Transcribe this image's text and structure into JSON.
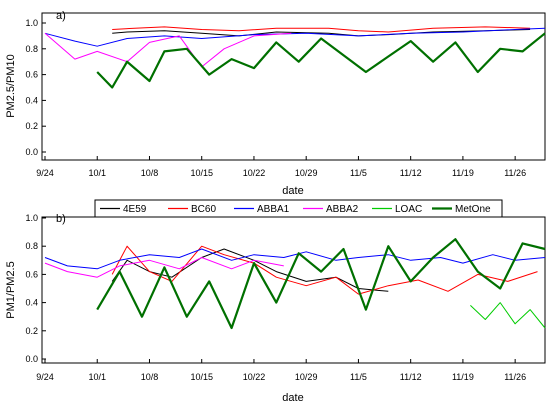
{
  "chart_data": [
    {
      "type": "line",
      "panel_label": "a)",
      "xlabel": "date",
      "ylabel": "PM2.5/PM10",
      "ylim": [
        0.0,
        1.0
      ],
      "yticks": [
        "0.0",
        "0.2",
        "0.4",
        "0.6",
        "0.8",
        "1.0"
      ],
      "x_tick_labels": [
        "9/24",
        "10/1",
        "10/8",
        "10/15",
        "10/22",
        "10/29",
        "11/5",
        "11/12",
        "11/19",
        "11/26"
      ],
      "series": [
        {
          "name": "4E59",
          "color": "#000000",
          "x": [
            "10/3",
            "10/5",
            "10/10",
            "10/15",
            "10/20",
            "10/25",
            "11/1",
            "11/5",
            "11/9",
            "11/15",
            "11/22",
            "11/28"
          ],
          "values": [
            0.92,
            0.93,
            0.94,
            0.92,
            0.9,
            0.93,
            0.92,
            0.9,
            0.91,
            0.93,
            0.94,
            0.95
          ]
        },
        {
          "name": "BC60",
          "color": "#ff0000",
          "x": [
            "10/3",
            "10/6",
            "10/10",
            "10/15",
            "10/20",
            "10/25",
            "11/1",
            "11/5",
            "11/9",
            "11/15",
            "11/22",
            "11/28"
          ],
          "values": [
            0.95,
            0.96,
            0.97,
            0.95,
            0.94,
            0.96,
            0.96,
            0.94,
            0.93,
            0.96,
            0.97,
            0.96
          ]
        },
        {
          "name": "ABBA1",
          "color": "#0000ff",
          "x": [
            "9/24",
            "9/28",
            "10/1",
            "10/5",
            "10/10",
            "10/15",
            "10/22",
            "10/29",
            "11/5",
            "11/12",
            "11/19",
            "11/26",
            "11/30"
          ],
          "values": [
            0.92,
            0.86,
            0.82,
            0.88,
            0.9,
            0.88,
            0.91,
            0.92,
            0.9,
            0.92,
            0.93,
            0.95,
            0.96
          ]
        },
        {
          "name": "ABBA2",
          "color": "#ff00ff",
          "x": [
            "9/24",
            "9/28",
            "10/1",
            "10/5",
            "10/8",
            "10/12",
            "10/15",
            "10/18",
            "10/22",
            "10/27"
          ],
          "values": [
            0.92,
            0.72,
            0.78,
            0.7,
            0.85,
            0.9,
            0.66,
            0.8,
            0.9,
            0.92
          ]
        },
        {
          "name": "LOAC",
          "color": "#00cc00",
          "x": [],
          "values": []
        },
        {
          "name": "MetOne",
          "color": "#007000",
          "x": [
            "10/1",
            "10/3",
            "10/5",
            "10/8",
            "10/10",
            "10/13",
            "10/16",
            "10/19",
            "10/22",
            "10/25",
            "10/28",
            "10/31",
            "11/3",
            "11/6",
            "11/9",
            "11/12",
            "11/15",
            "11/18",
            "11/21",
            "11/24",
            "11/27",
            "11/30"
          ],
          "values": [
            0.62,
            0.5,
            0.7,
            0.55,
            0.78,
            0.8,
            0.6,
            0.72,
            0.65,
            0.85,
            0.7,
            0.88,
            0.75,
            0.62,
            0.74,
            0.86,
            0.7,
            0.85,
            0.62,
            0.8,
            0.78,
            0.92
          ]
        }
      ]
    },
    {
      "type": "line",
      "panel_label": "b)",
      "xlabel": "date",
      "ylabel": "PM1/PM2.5",
      "ylim": [
        0.0,
        1.0
      ],
      "yticks": [
        "0.0",
        "0.2",
        "0.4",
        "0.6",
        "0.8",
        "1.0"
      ],
      "x_tick_labels": [
        "9/24",
        "10/1",
        "10/8",
        "10/15",
        "10/22",
        "10/29",
        "11/5",
        "11/12",
        "11/19",
        "11/26"
      ],
      "series": [
        {
          "name": "4E59",
          "color": "#000000",
          "x": [
            "10/3",
            "10/5",
            "10/8",
            "10/11",
            "10/15",
            "10/18",
            "10/22",
            "10/25",
            "10/29",
            "11/2",
            "11/5",
            "11/9"
          ],
          "values": [
            0.55,
            0.7,
            0.62,
            0.58,
            0.72,
            0.78,
            0.7,
            0.62,
            0.55,
            0.58,
            0.5,
            0.48
          ]
        },
        {
          "name": "BC60",
          "color": "#ff0000",
          "x": [
            "10/3",
            "10/5",
            "10/8",
            "10/11",
            "10/15",
            "10/18",
            "10/22",
            "10/25",
            "10/29",
            "11/2",
            "11/5",
            "11/9",
            "11/13",
            "11/17",
            "11/21",
            "11/25",
            "11/29"
          ],
          "values": [
            0.6,
            0.8,
            0.62,
            0.55,
            0.8,
            0.74,
            0.68,
            0.58,
            0.52,
            0.58,
            0.46,
            0.52,
            0.56,
            0.48,
            0.6,
            0.55,
            0.62
          ]
        },
        {
          "name": "ABBA1",
          "color": "#0000ff",
          "x": [
            "9/24",
            "9/27",
            "10/1",
            "10/4",
            "10/8",
            "10/12",
            "10/15",
            "10/19",
            "10/22",
            "10/26",
            "10/29",
            "11/2",
            "11/5",
            "11/9",
            "11/12",
            "11/16",
            "11/19",
            "11/23",
            "11/26",
            "11/30"
          ],
          "values": [
            0.72,
            0.66,
            0.64,
            0.7,
            0.74,
            0.72,
            0.78,
            0.7,
            0.74,
            0.72,
            0.76,
            0.7,
            0.72,
            0.74,
            0.7,
            0.72,
            0.68,
            0.74,
            0.7,
            0.72
          ]
        },
        {
          "name": "ABBA2",
          "color": "#ff00ff",
          "x": [
            "9/24",
            "9/27",
            "10/1",
            "10/4",
            "10/8",
            "10/12",
            "10/15",
            "10/19",
            "10/22",
            "10/26"
          ],
          "values": [
            0.68,
            0.62,
            0.58,
            0.66,
            0.7,
            0.64,
            0.72,
            0.64,
            0.7,
            0.66
          ]
        },
        {
          "name": "LOAC",
          "color": "#00cc00",
          "x": [
            "11/20",
            "11/22",
            "11/24",
            "11/26",
            "11/28",
            "11/30"
          ],
          "values": [
            0.38,
            0.28,
            0.4,
            0.25,
            0.35,
            0.22
          ]
        },
        {
          "name": "MetOne",
          "color": "#007000",
          "x": [
            "10/1",
            "10/4",
            "10/7",
            "10/10",
            "10/13",
            "10/16",
            "10/19",
            "10/22",
            "10/25",
            "10/28",
            "10/31",
            "11/3",
            "11/6",
            "11/9",
            "11/12",
            "11/15",
            "11/18",
            "11/21",
            "11/24",
            "11/27",
            "11/30"
          ],
          "values": [
            0.35,
            0.62,
            0.3,
            0.65,
            0.3,
            0.55,
            0.22,
            0.68,
            0.4,
            0.75,
            0.62,
            0.78,
            0.35,
            0.8,
            0.55,
            0.72,
            0.85,
            0.62,
            0.5,
            0.82,
            0.78
          ]
        }
      ]
    }
  ],
  "legend": {
    "placement": "between panels",
    "entries": [
      "4E59",
      "BC60",
      "ABBA1",
      "ABBA2",
      "LOAC",
      "MetOne"
    ]
  }
}
